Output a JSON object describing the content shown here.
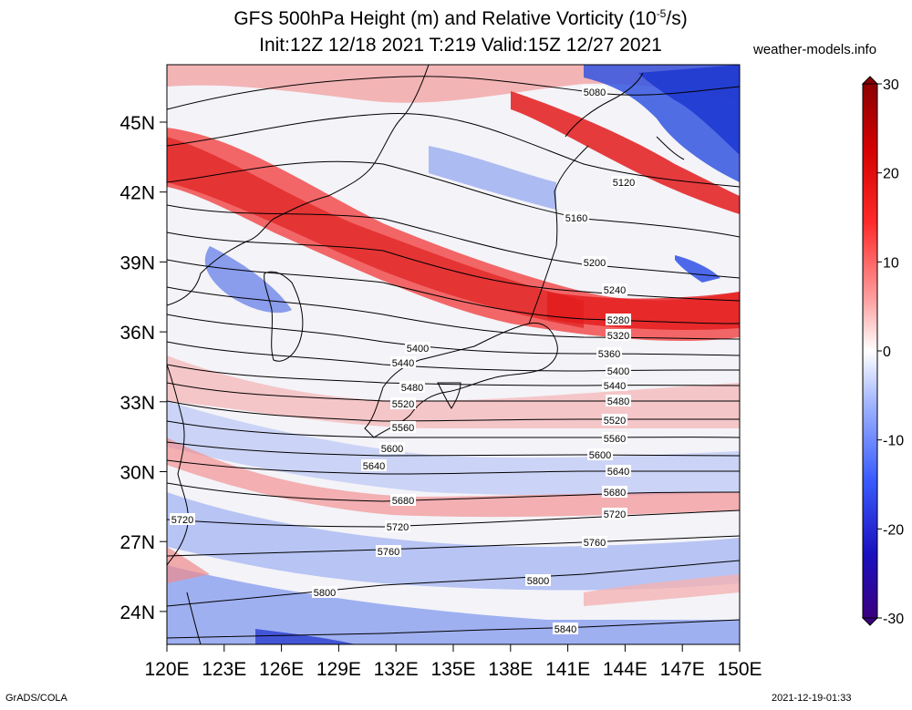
{
  "header": {
    "title_line1": "GFS 500hPa Height (m) and Relative Vorticity (10",
    "title_exp": "-5",
    "title_tail": "/s)",
    "title_line2": "Init:12Z 12/18 2021 T:219 Valid:15Z 12/27 2021",
    "site": "weather-models.info"
  },
  "map": {
    "lon_labels": [
      "120E",
      "123E",
      "126E",
      "129E",
      "132E",
      "135E",
      "138E",
      "141E",
      "144E",
      "147E",
      "150E"
    ],
    "lat_labels": [
      "45N",
      "42N",
      "39N",
      "36N",
      "33N",
      "30N",
      "27N",
      "24N"
    ],
    "colors": {
      "pos": "#e31a1c",
      "neg": "#2b4fd6",
      "land_line": "#000000"
    }
  },
  "contours": [
    {
      "value": "5080"
    },
    {
      "value": "5120"
    },
    {
      "value": "5160"
    },
    {
      "value": "5200"
    },
    {
      "value": "5240"
    },
    {
      "value": "5280"
    },
    {
      "value": "5320"
    },
    {
      "value": "5360"
    },
    {
      "value": "5400"
    },
    {
      "value": "5440"
    },
    {
      "value": "5480"
    },
    {
      "value": "5520"
    },
    {
      "value": "5560"
    },
    {
      "value": "5600"
    },
    {
      "value": "5640"
    },
    {
      "value": "5680"
    },
    {
      "value": "5720"
    },
    {
      "value": "5760"
    },
    {
      "value": "5800"
    },
    {
      "value": "5840"
    }
  ],
  "colorbar": {
    "ticks": [
      "30",
      "20",
      "10",
      "0",
      "-10",
      "-20",
      "-30"
    ],
    "colors": [
      "#8b0000",
      "#d40000",
      "#ff3030",
      "#ff9a9a",
      "#ffffff",
      "#9ab0ff",
      "#3050ff",
      "#1a10c0",
      "#3a0080"
    ]
  },
  "footer": {
    "left": "GrADS/COLA",
    "right": "2021-12-19-01:33"
  }
}
